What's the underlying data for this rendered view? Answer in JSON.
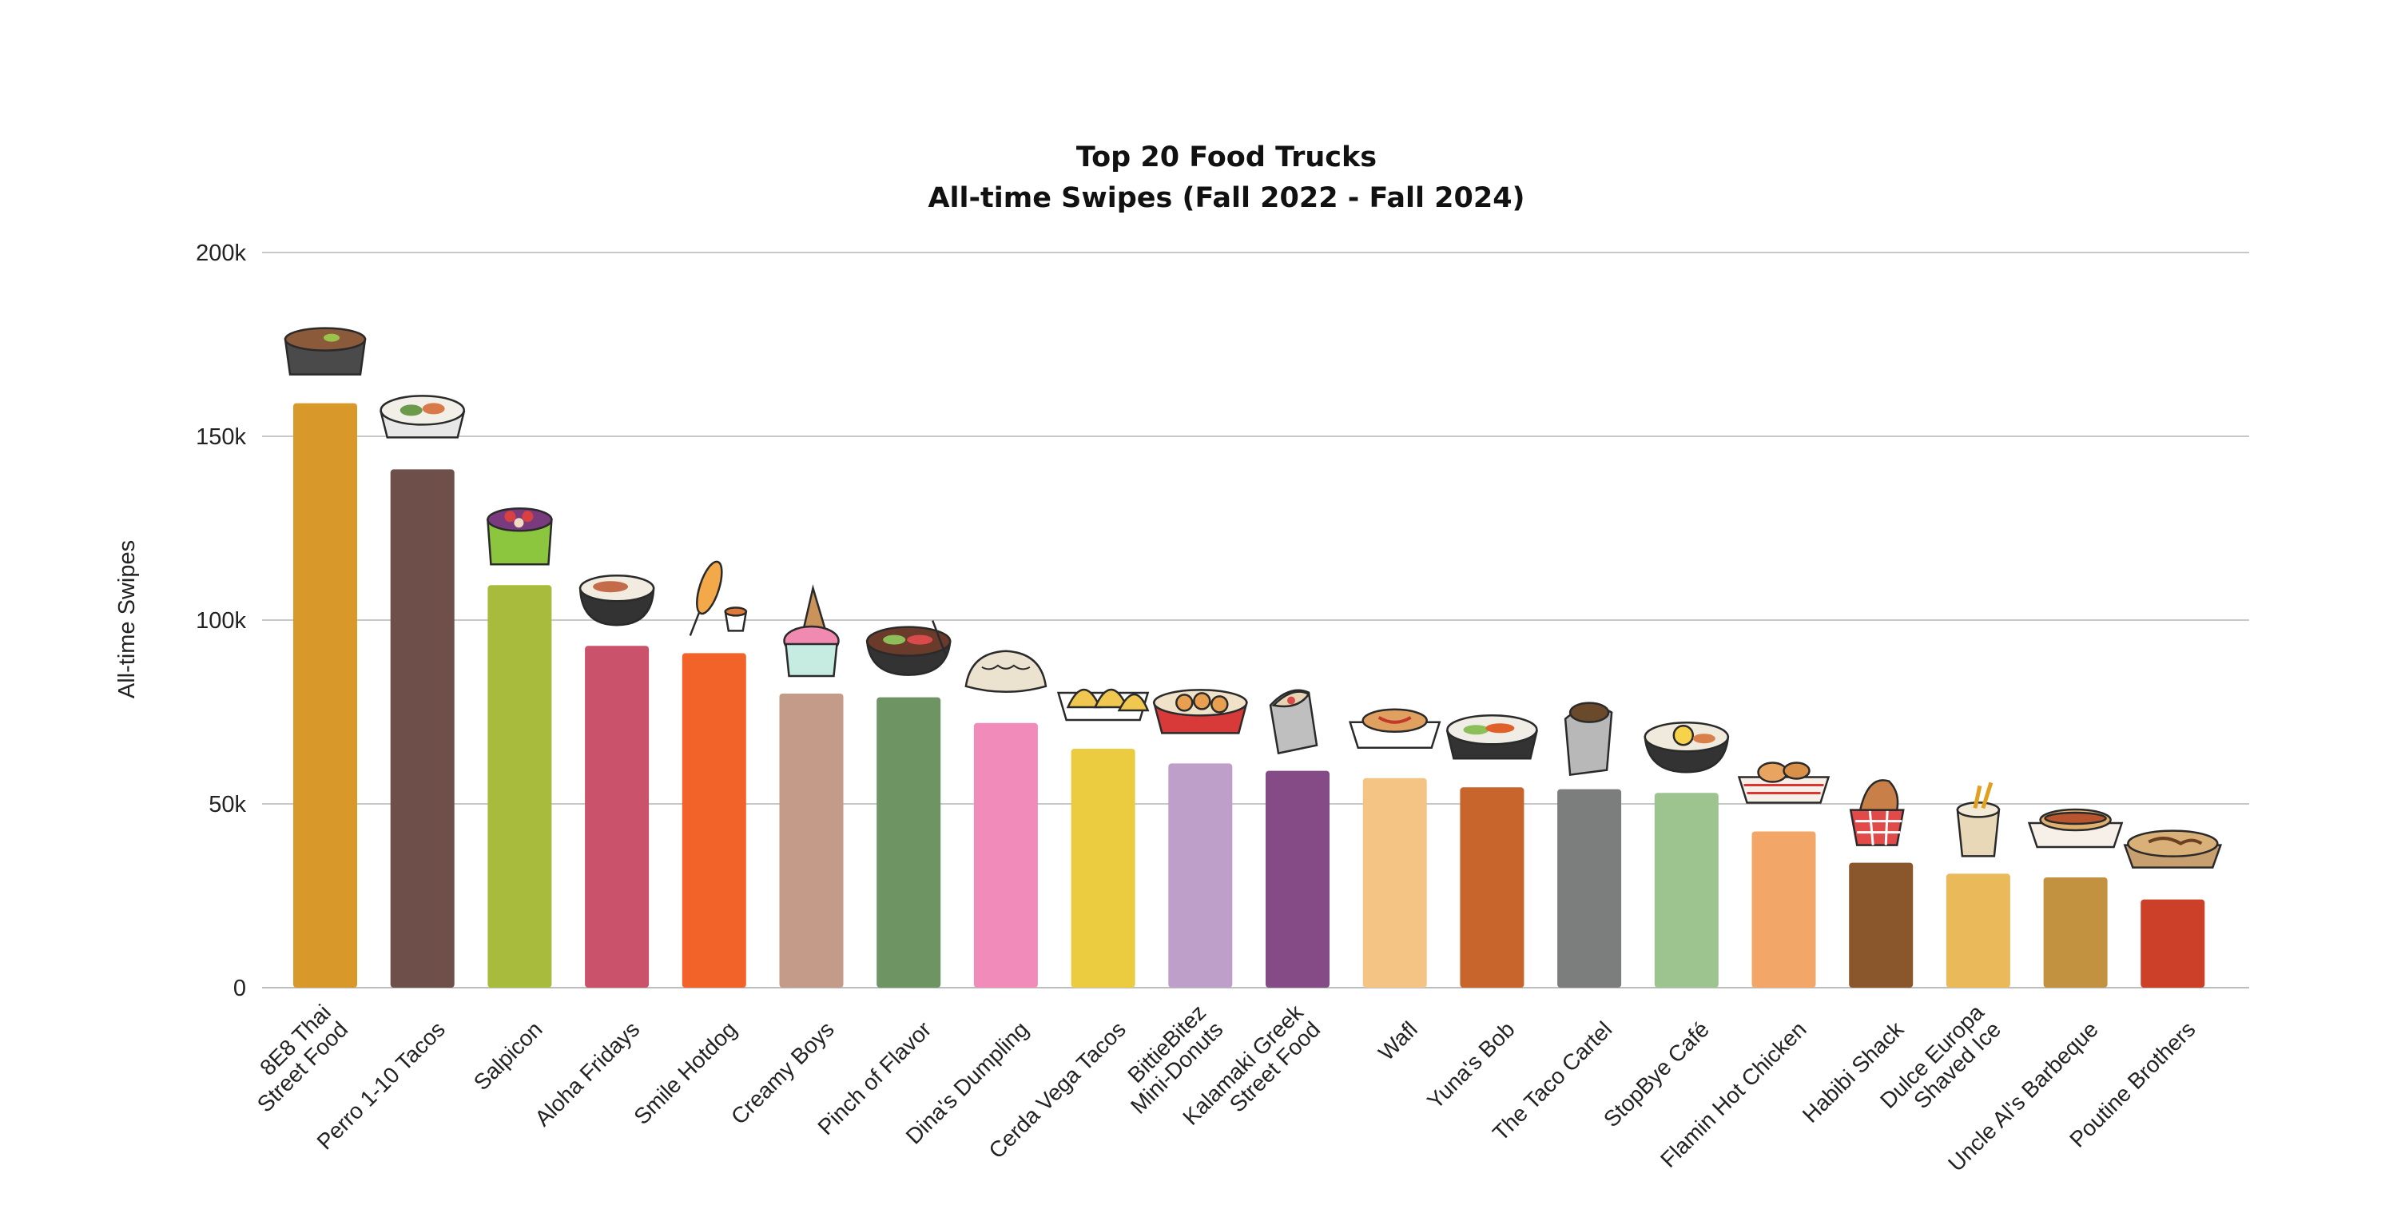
{
  "chart_data": {
    "type": "bar",
    "title": [
      "Top 20 Food Trucks",
      "All-time Swipes (Fall 2022 - Fall 2024)"
    ],
    "xlabel": "",
    "ylabel": "All-time Swipes",
    "ylim": [
      0,
      200000
    ],
    "yticks": [
      {
        "value": 0,
        "label": "0"
      },
      {
        "value": 50000,
        "label": "50k"
      },
      {
        "value": 100000,
        "label": "100k"
      },
      {
        "value": 150000,
        "label": "150k"
      },
      {
        "value": 200000,
        "label": "200k"
      }
    ],
    "grid": true,
    "categories": [
      "8E8 Thai\nStreet Food",
      "Perro 1-10 Tacos",
      "Salpicon",
      "Aloha Fridays",
      "Smile Hotdog",
      "Creamy Boys",
      "Pinch of Flavor",
      "Dina's Dumpling",
      "Cerda Vega Tacos",
      "BittieBitez\nMini-Donuts",
      "Kalamaki Greek\nStreet Food",
      "Wafl",
      "Yuna's Bob",
      "The Taco Cartel",
      "StopBye Café",
      "Flamin Hot Chicken",
      "Habibi Shack",
      "Dulce Europa\nShaved Ice",
      "Uncle Al's Barbeque",
      "Poutine Brothers"
    ],
    "values": [
      159000,
      141000,
      109500,
      93000,
      91000,
      80000,
      79000,
      72000,
      65000,
      61000,
      59000,
      57000,
      54500,
      54000,
      53000,
      42500,
      34000,
      31000,
      30000,
      24000
    ],
    "colors": [
      "#D8992A",
      "#6F4F4A",
      "#A8BB3C",
      "#CB526B",
      "#F16328",
      "#C49A88",
      "#6E9463",
      "#F18CBA",
      "#EBCC40",
      "#BD9FCA",
      "#854B86",
      "#F3C483",
      "#C8652C",
      "#7B7E7C",
      "#9DC38F",
      "#F2A768",
      "#8A562C",
      "#EAB95A",
      "#C39240",
      "#CC4029"
    ],
    "icons": [
      "curry-bowl-icon",
      "tacos-box-icon",
      "acai-cup-icon",
      "rice-bowl-icon",
      "corn-dog-icon",
      "ice-cream-cone-icon",
      "noodle-bowl-icon",
      "dumpling-icon",
      "tacos-tray-icon",
      "donut-tray-icon",
      "pita-wrap-icon",
      "waffle-box-icon",
      "bibimbap-bowl-icon",
      "burrito-icon",
      "rice-egg-bowl-icon",
      "fried-chicken-box-icon",
      "shawarma-wrap-icon",
      "shaved-ice-cup-icon",
      "hotdog-tray-icon",
      "poutine-tray-icon"
    ]
  }
}
